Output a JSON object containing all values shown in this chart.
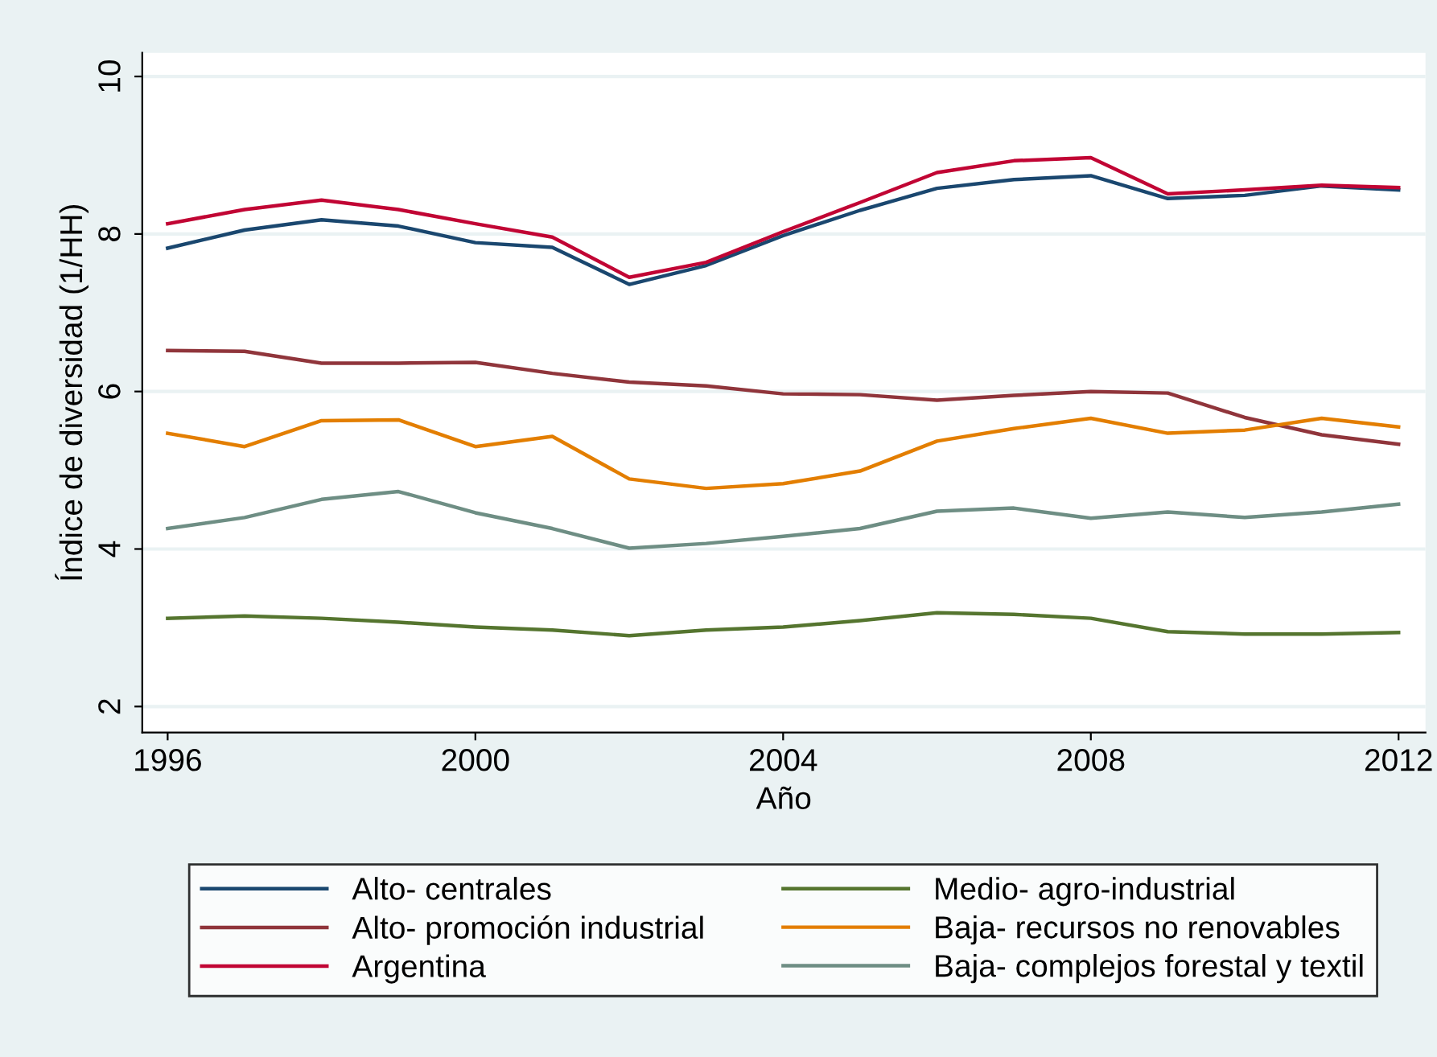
{
  "chart_data": {
    "type": "line",
    "xlabel": "Año",
    "ylabel": "Índice de diversidad (1/HH)",
    "x": [
      1996,
      1997,
      1998,
      1999,
      2000,
      2001,
      2002,
      2003,
      2004,
      2005,
      2006,
      2007,
      2008,
      2009,
      2010,
      2011,
      2012
    ],
    "xlim": [
      1995.67,
      2012.35
    ],
    "xticks": [
      1996,
      2000,
      2004,
      2008,
      2012
    ],
    "ylim": [
      1.67,
      10.3
    ],
    "yticks": [
      2,
      4,
      6,
      8,
      10
    ],
    "grid": "y",
    "legend": "bottom",
    "marker": "none",
    "line_style": "solid",
    "series": [
      {
        "name": "Alto- centrales",
        "color": "#1a476f",
        "values": [
          7.82,
          8.05,
          8.18,
          8.1,
          7.89,
          7.83,
          7.36,
          7.6,
          7.98,
          8.3,
          8.58,
          8.69,
          8.74,
          8.45,
          8.49,
          8.61,
          8.56
        ]
      },
      {
        "name": "Alto- promoción industrial",
        "color": "#90353b",
        "values": [
          6.52,
          6.51,
          6.36,
          6.36,
          6.37,
          6.23,
          6.12,
          6.07,
          5.97,
          5.96,
          5.89,
          5.95,
          6.0,
          5.98,
          5.67,
          5.45,
          5.33
        ]
      },
      {
        "name": "Argentina",
        "color": "#c10534",
        "values": [
          8.13,
          8.31,
          8.43,
          8.31,
          8.13,
          7.96,
          7.45,
          7.64,
          8.03,
          8.4,
          8.78,
          8.93,
          8.97,
          8.51,
          8.56,
          8.62,
          8.59
        ]
      },
      {
        "name": "Medio- agro-industrial",
        "color": "#55752f",
        "values": [
          3.12,
          3.15,
          3.12,
          3.07,
          3.01,
          2.97,
          2.9,
          2.97,
          3.01,
          3.09,
          3.19,
          3.17,
          3.12,
          2.95,
          2.92,
          2.92,
          2.94
        ]
      },
      {
        "name": "Baja- recursos no renovables",
        "color": "#e37e00",
        "values": [
          5.47,
          5.3,
          5.63,
          5.64,
          5.3,
          5.43,
          4.89,
          4.77,
          4.83,
          4.99,
          5.37,
          5.53,
          5.66,
          5.47,
          5.51,
          5.66,
          5.55
        ]
      },
      {
        "name": "Baja- complejos forestal y textil",
        "color": "#6e8e84",
        "values": [
          4.26,
          4.4,
          4.63,
          4.73,
          4.46,
          4.26,
          4.01,
          4.07,
          4.16,
          4.26,
          4.48,
          4.52,
          4.39,
          4.47,
          4.4,
          4.47,
          4.57
        ]
      }
    ]
  }
}
